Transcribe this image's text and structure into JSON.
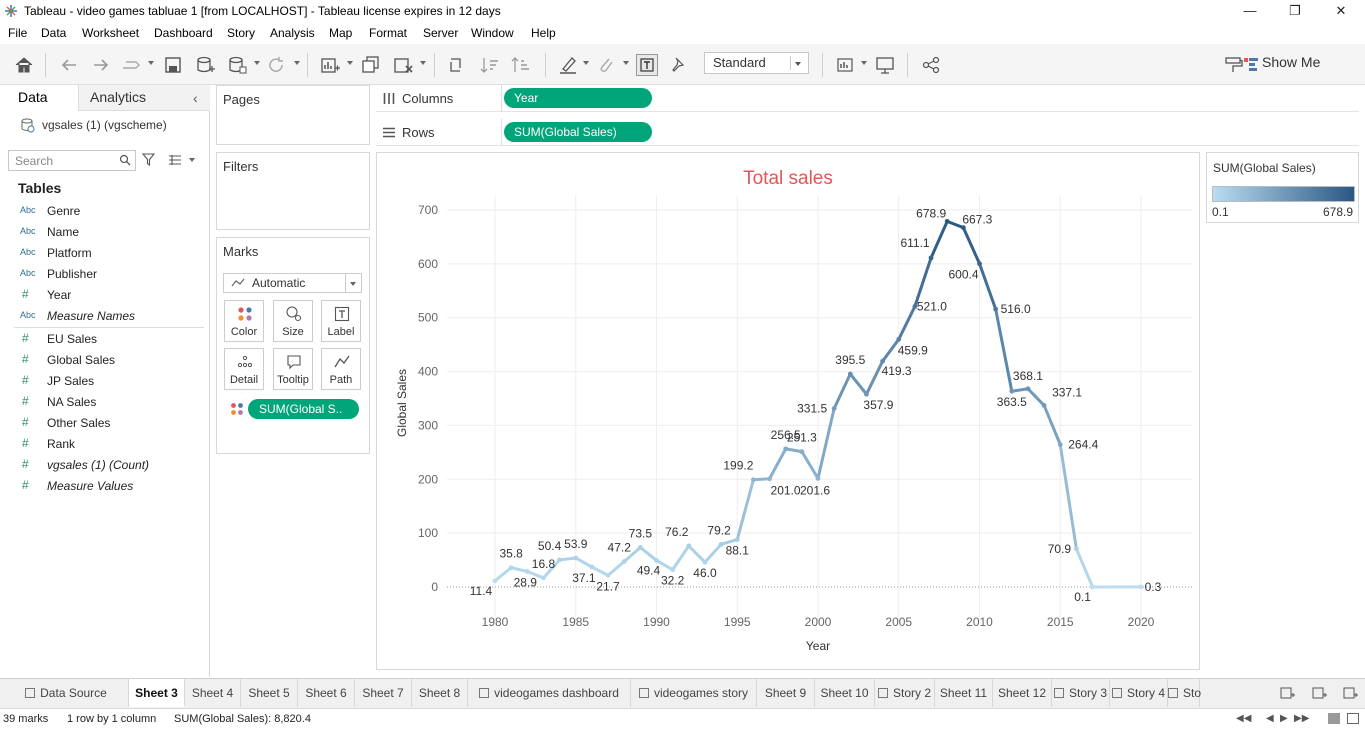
{
  "window": {
    "title": "Tableau - video games tabluae 1 [from LOCALHOST] - Tableau license expires in 12 days"
  },
  "menu": [
    "File",
    "Data",
    "Worksheet",
    "Dashboard",
    "Story",
    "Analysis",
    "Map",
    "Format",
    "Server",
    "Window",
    "Help"
  ],
  "toolbar": {
    "fit_select": "Standard",
    "show_me": "Show Me"
  },
  "data_pane": {
    "tab_data": "Data",
    "tab_analytics": "Analytics",
    "datasource": "vgsales (1) (vgscheme)",
    "search_placeholder": "Search",
    "tables_header": "Tables",
    "dimensions": [
      {
        "type": "Abc",
        "name": "Genre"
      },
      {
        "type": "Abc",
        "name": "Name"
      },
      {
        "type": "Abc",
        "name": "Platform"
      },
      {
        "type": "Abc",
        "name": "Publisher"
      },
      {
        "type": "#",
        "name": "Year"
      },
      {
        "type": "Abc",
        "name": "Measure Names"
      }
    ],
    "measures": [
      {
        "type": "#",
        "name": "EU Sales"
      },
      {
        "type": "#",
        "name": "Global Sales"
      },
      {
        "type": "#",
        "name": "JP Sales"
      },
      {
        "type": "#",
        "name": "NA Sales"
      },
      {
        "type": "#",
        "name": "Other Sales"
      },
      {
        "type": "#",
        "name": "Rank"
      },
      {
        "type": "#",
        "name": "vgsales (1) (Count)"
      },
      {
        "type": "#",
        "name": "Measure Values"
      }
    ]
  },
  "cards": {
    "pages": "Pages",
    "filters": "Filters",
    "marks": "Marks",
    "mark_type": "Automatic",
    "mark_buttons": [
      "Color",
      "Size",
      "Label",
      "Detail",
      "Tooltip",
      "Path"
    ],
    "marks_pill": "SUM(Global S.."
  },
  "shelves": {
    "columns_label": "Columns",
    "columns_pill": "Year",
    "rows_label": "Rows",
    "rows_pill": "SUM(Global Sales)"
  },
  "legend": {
    "title": "SUM(Global Sales)",
    "min": "0.1",
    "max": "678.9",
    "color_low": "#b9ddf1",
    "color_high": "#2a5783"
  },
  "chart_data": {
    "type": "line",
    "title": "Total sales",
    "xlabel": "Year",
    "ylabel": "Global Sales",
    "xlim": [
      1976,
      2023
    ],
    "ylim": [
      0,
      700
    ],
    "x_ticks": [
      1980,
      1985,
      1990,
      1995,
      2000,
      2005,
      2010,
      2015,
      2020
    ],
    "y_ticks": [
      0,
      100,
      200,
      300,
      400,
      500,
      600,
      700
    ],
    "grid": true,
    "x": [
      1980,
      1981,
      1982,
      1983,
      1984,
      1985,
      1986,
      1987,
      1988,
      1989,
      1990,
      1991,
      1992,
      1993,
      1994,
      1995,
      1996,
      1997,
      1998,
      1999,
      2000,
      2001,
      2002,
      2003,
      2004,
      2005,
      2006,
      2007,
      2008,
      2009,
      2010,
      2011,
      2012,
      2013,
      2014,
      2015,
      2016,
      2017,
      2020
    ],
    "values": [
      11.4,
      35.8,
      28.9,
      16.8,
      50.4,
      53.9,
      37.1,
      21.7,
      47.2,
      73.5,
      49.4,
      32.2,
      76.2,
      46.0,
      79.2,
      88.1,
      199.2,
      201.0,
      256.5,
      251.3,
      201.6,
      331.5,
      395.5,
      357.9,
      419.3,
      459.9,
      521.0,
      611.1,
      678.9,
      667.3,
      600.4,
      516.0,
      363.5,
      368.1,
      337.1,
      264.4,
      70.9,
      0.1,
      0.3
    ],
    "labels": [
      "11.4",
      "35.8",
      "28.9",
      "16.8",
      "50.4",
      "53.9",
      "37.1",
      "21.7",
      "47.2",
      "73.5",
      "49.4",
      "32.2",
      "76.2",
      "46.0",
      "79.2",
      "88.1",
      "199.2",
      "201.0",
      "256.5",
      "251.3",
      "201.6",
      "331.5",
      "395.5",
      "357.9",
      "419.3",
      "459.9",
      "521.0",
      "611.1",
      "678.9",
      "667.3",
      "600.4",
      "516.0",
      "363.5",
      "368.1",
      "337.1",
      "264.4",
      "70.9",
      "0.1",
      "0.3"
    ]
  },
  "sheet_tabs": [
    "Data Source",
    "Sheet 3",
    "Sheet 4",
    "Sheet 5",
    "Sheet 6",
    "Sheet 7",
    "Sheet 8",
    "videogames dashboard",
    "videogames story",
    "Sheet 9",
    "Sheet 10",
    "Story 2",
    "Sheet 11",
    "Sheet 12",
    "Story 3",
    "Story 4",
    "Sto"
  ],
  "active_sheet": "Sheet 3",
  "status": {
    "marks": "39 marks",
    "dims": "1 row by 1 column",
    "sum": "SUM(Global Sales): 8,820.4"
  }
}
